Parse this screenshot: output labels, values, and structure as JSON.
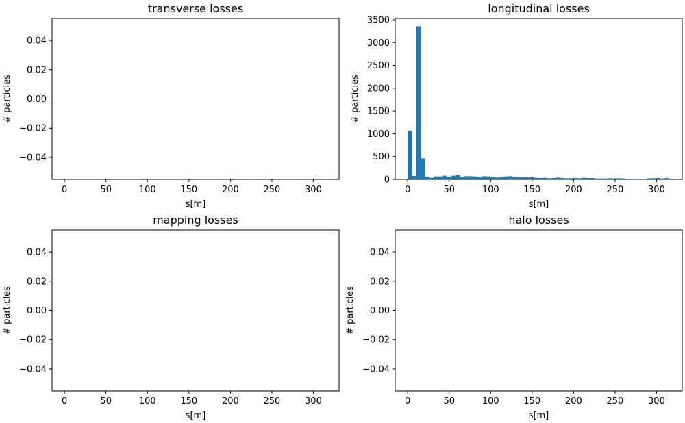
{
  "chart_data": [
    {
      "type": "bar",
      "title": "transverse losses",
      "xlabel": "s[m]",
      "ylabel": "# particles",
      "xlim": [
        -15,
        331
      ],
      "ylim": [
        -0.055,
        0.055
      ],
      "xticks": [
        0,
        50,
        100,
        150,
        200,
        250,
        300
      ],
      "xtick_labels": [
        "0",
        "50",
        "100",
        "150",
        "200",
        "250",
        "300"
      ],
      "yticks": [
        -0.04,
        -0.02,
        0.0,
        0.02,
        0.04
      ],
      "ytick_labels": [
        "−0.04",
        "−0.02",
        "0.00",
        "0.02",
        "0.04"
      ],
      "bar_color": "#1f77b4",
      "grid": false,
      "bins": []
    },
    {
      "type": "bar",
      "title": "longitudinal losses",
      "xlabel": "s[m]",
      "ylabel": "# particles",
      "xlim": [
        -15,
        331
      ],
      "ylim": [
        0,
        3530
      ],
      "xticks": [
        0,
        50,
        100,
        150,
        200,
        250,
        300
      ],
      "xtick_labels": [
        "0",
        "50",
        "100",
        "150",
        "200",
        "250",
        "300"
      ],
      "yticks": [
        0,
        500,
        1000,
        1500,
        2000,
        2500,
        3000,
        3500
      ],
      "ytick_labels": [
        "0",
        "500",
        "1000",
        "1500",
        "2000",
        "2500",
        "3000",
        "3500"
      ],
      "bar_color": "#1f77b4",
      "grid": false,
      "bin_width": 5.25,
      "bins": [
        {
          "x": 0.0,
          "y": 1060
        },
        {
          "x": 5.25,
          "y": 75
        },
        {
          "x": 10.5,
          "y": 3360
        },
        {
          "x": 15.75,
          "y": 460
        },
        {
          "x": 21.0,
          "y": 60
        },
        {
          "x": 26.25,
          "y": 35
        },
        {
          "x": 31.5,
          "y": 65
        },
        {
          "x": 36.75,
          "y": 65
        },
        {
          "x": 42.0,
          "y": 80
        },
        {
          "x": 47.25,
          "y": 60
        },
        {
          "x": 52.5,
          "y": 80
        },
        {
          "x": 57.75,
          "y": 95
        },
        {
          "x": 63.0,
          "y": 50
        },
        {
          "x": 68.25,
          "y": 70
        },
        {
          "x": 73.5,
          "y": 70
        },
        {
          "x": 78.75,
          "y": 65
        },
        {
          "x": 84.0,
          "y": 55
        },
        {
          "x": 89.25,
          "y": 70
        },
        {
          "x": 94.5,
          "y": 65
        },
        {
          "x": 99.75,
          "y": 45
        },
        {
          "x": 105.0,
          "y": 40
        },
        {
          "x": 110.25,
          "y": 55
        },
        {
          "x": 115.5,
          "y": 65
        },
        {
          "x": 120.75,
          "y": 70
        },
        {
          "x": 126.0,
          "y": 50
        },
        {
          "x": 131.25,
          "y": 50
        },
        {
          "x": 136.5,
          "y": 45
        },
        {
          "x": 141.75,
          "y": 45
        },
        {
          "x": 147.0,
          "y": 55
        },
        {
          "x": 152.25,
          "y": 35
        },
        {
          "x": 157.5,
          "y": 30
        },
        {
          "x": 162.75,
          "y": 35
        },
        {
          "x": 168.0,
          "y": 25
        },
        {
          "x": 173.25,
          "y": 30
        },
        {
          "x": 178.5,
          "y": 40
        },
        {
          "x": 183.75,
          "y": 30
        },
        {
          "x": 189.0,
          "y": 25
        },
        {
          "x": 194.25,
          "y": 25
        },
        {
          "x": 199.5,
          "y": 30
        },
        {
          "x": 204.75,
          "y": 25
        },
        {
          "x": 210.0,
          "y": 35
        },
        {
          "x": 215.25,
          "y": 30
        },
        {
          "x": 220.5,
          "y": 30
        },
        {
          "x": 225.75,
          "y": 20
        },
        {
          "x": 231.0,
          "y": 20
        },
        {
          "x": 236.25,
          "y": 20
        },
        {
          "x": 241.5,
          "y": 25
        },
        {
          "x": 246.75,
          "y": 20
        },
        {
          "x": 252.0,
          "y": 25
        },
        {
          "x": 257.25,
          "y": 20
        },
        {
          "x": 262.5,
          "y": 15
        },
        {
          "x": 267.75,
          "y": 15
        },
        {
          "x": 273.0,
          "y": 15
        },
        {
          "x": 278.25,
          "y": 15
        },
        {
          "x": 283.5,
          "y": 15
        },
        {
          "x": 288.75,
          "y": 25
        },
        {
          "x": 294.0,
          "y": 25
        },
        {
          "x": 299.25,
          "y": 30
        },
        {
          "x": 304.5,
          "y": 20
        },
        {
          "x": 309.75,
          "y": 30
        }
      ]
    },
    {
      "type": "bar",
      "title": "mapping losses",
      "xlabel": "s[m]",
      "ylabel": "# particles",
      "xlim": [
        -15,
        331
      ],
      "ylim": [
        -0.055,
        0.055
      ],
      "xticks": [
        0,
        50,
        100,
        150,
        200,
        250,
        300
      ],
      "xtick_labels": [
        "0",
        "50",
        "100",
        "150",
        "200",
        "250",
        "300"
      ],
      "yticks": [
        -0.04,
        -0.02,
        0.0,
        0.02,
        0.04
      ],
      "ytick_labels": [
        "−0.04",
        "−0.02",
        "0.00",
        "0.02",
        "0.04"
      ],
      "bar_color": "#1f77b4",
      "grid": false,
      "bins": []
    },
    {
      "type": "bar",
      "title": "halo losses",
      "xlabel": "s[m]",
      "ylabel": "# particles",
      "xlim": [
        -15,
        331
      ],
      "ylim": [
        -0.055,
        0.055
      ],
      "xticks": [
        0,
        50,
        100,
        150,
        200,
        250,
        300
      ],
      "xtick_labels": [
        "0",
        "50",
        "100",
        "150",
        "200",
        "250",
        "300"
      ],
      "yticks": [
        -0.04,
        -0.02,
        0.0,
        0.02,
        0.04
      ],
      "ytick_labels": [
        "−0.04",
        "−0.02",
        "0.00",
        "0.02",
        "0.04"
      ],
      "bar_color": "#1f77b4",
      "grid": false,
      "bins": []
    }
  ]
}
